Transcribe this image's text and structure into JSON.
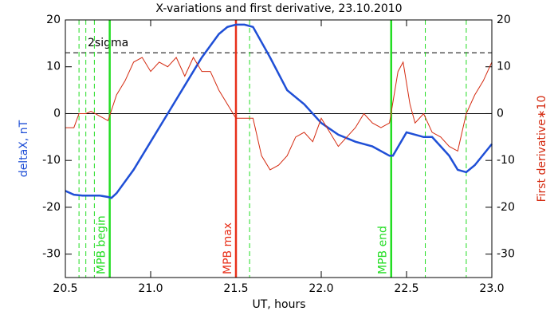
{
  "chart_data": {
    "type": "line",
    "title": "X-variations and first derivative, 23.10.2010",
    "x_label": "UT, hours",
    "xlim": [
      20.5,
      23.0
    ],
    "xticks": [
      20.5,
      {
        "value": 21,
        "label": "21.0"
      },
      21.5,
      {
        "value": 22,
        "label": "22.0"
      },
      22.5,
      {
        "value": 23,
        "label": "23.0"
      }
    ],
    "ylim": [
      -35,
      20
    ],
    "yticks": [
      20,
      10,
      0,
      -10,
      -20,
      -30
    ],
    "y2lim": [
      -35,
      20
    ],
    "y2ticks": [
      20,
      10,
      0,
      -10,
      -20,
      -30
    ],
    "series": [
      {
        "name": "deltaX, nT",
        "color": "#1f4fd6",
        "width": 2.5,
        "x": [
          20.5,
          20.55,
          20.6,
          20.7,
          20.75,
          20.77,
          20.8,
          20.9,
          21.0,
          21.1,
          21.2,
          21.3,
          21.4,
          21.45,
          21.5,
          21.55,
          21.6,
          21.7,
          21.8,
          21.9,
          22.0,
          22.1,
          22.2,
          22.3,
          22.4,
          22.42,
          22.5,
          22.6,
          22.65,
          22.75,
          22.8,
          22.85,
          22.9,
          23.0
        ],
        "values": [
          -16.5,
          -17.3,
          -17.5,
          -17.5,
          -17.8,
          -18,
          -17,
          -12,
          -6,
          0,
          6,
          12,
          17,
          18.5,
          19,
          19,
          18.5,
          12,
          5,
          2,
          -2,
          -4.5,
          -6,
          -7,
          -9,
          -9,
          -4,
          -5,
          -5,
          -9,
          -12,
          -12.5,
          -11,
          -6.5
        ]
      },
      {
        "name": "First derivative∗10",
        "color": "#d42a10",
        "width": 1,
        "axis": "y2",
        "x": [
          20.5,
          20.55,
          20.58,
          20.62,
          20.65,
          20.7,
          20.75,
          20.8,
          20.85,
          20.9,
          20.95,
          21.0,
          21.05,
          21.1,
          21.15,
          21.2,
          21.25,
          21.3,
          21.35,
          21.4,
          21.45,
          21.5,
          21.55,
          21.6,
          21.65,
          21.7,
          21.75,
          21.8,
          21.85,
          21.9,
          21.95,
          22.0,
          22.05,
          22.1,
          22.15,
          22.2,
          22.25,
          22.3,
          22.35,
          22.4,
          22.45,
          22.48,
          22.52,
          22.55,
          22.6,
          22.65,
          22.7,
          22.75,
          22.8,
          22.85,
          22.9,
          22.95,
          23.0
        ],
        "values": [
          -3,
          -3,
          0,
          0,
          0.5,
          -0.5,
          -1.5,
          4,
          7,
          11,
          12,
          9,
          11,
          10,
          12,
          8,
          12,
          9,
          9,
          5,
          2,
          -1,
          -1,
          -1,
          -9,
          -12,
          -11,
          -9,
          -5,
          -4,
          -6,
          -1,
          -4,
          -7,
          -5,
          -3,
          0,
          -2,
          -3,
          -2,
          9,
          11,
          2,
          -2,
          0,
          -4,
          -5,
          -7,
          -8,
          0,
          4,
          7,
          11
        ]
      }
    ],
    "hlines": [
      {
        "y": 13,
        "style": "dashed",
        "color": "#000000",
        "label": "2sigma"
      },
      {
        "y": 0,
        "style": "solid",
        "color": "#000000"
      }
    ],
    "vlines": [
      {
        "x": 20.58,
        "style": "dashed",
        "color": "#22dd22"
      },
      {
        "x": 20.62,
        "style": "dashed",
        "color": "#22dd22"
      },
      {
        "x": 20.67,
        "style": "dashed",
        "color": "#22dd22"
      },
      {
        "x": 20.76,
        "style": "solid",
        "color": "#22dd22",
        "label": "MPB begin"
      },
      {
        "x": 21.5,
        "style": "solid",
        "color": "#e8301a",
        "label": "MPB max"
      },
      {
        "x": 21.58,
        "style": "dashed",
        "color": "#22dd22"
      },
      {
        "x": 22.41,
        "style": "solid",
        "color": "#22dd22",
        "label": "MPB end"
      },
      {
        "x": 22.61,
        "style": "dashed",
        "color": "#22dd22"
      },
      {
        "x": 22.85,
        "style": "dashed",
        "color": "#22dd22"
      }
    ]
  }
}
